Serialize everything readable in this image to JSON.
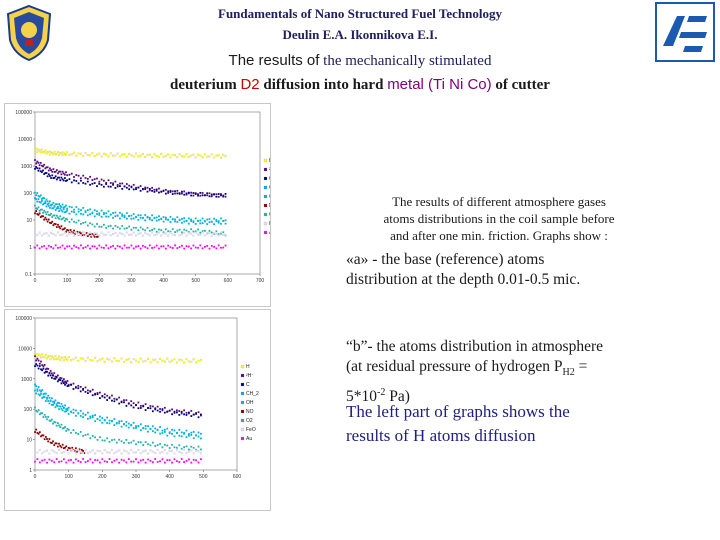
{
  "header": {
    "line1": "Fundamentals of Nano Structured Fuel Technology",
    "line2": "Deulin E.A.   Ikonnikova E.I."
  },
  "title": {
    "part1": "The results of",
    "part2": " the mechanically stimulated",
    "part3": "deuterium ",
    "part4": "D2",
    "part5": "  diffusion into hard ",
    "part6": "metal (Ti Ni Co)",
    "part7": " of cutter"
  },
  "description": {
    "intro_line1": "The results of different atmosphere gases",
    "intro_line2": "atoms distributions  in the coil sample before",
    "intro_line3": "and  after  one min. friction.     Graphs show :",
    "a_line1": "«a» - the base (reference)  atoms",
    "a_line2": "distribution at the depth 0.01-0.5 mic.",
    "b_text": "“b”- the  atoms distribution in atmosphere (at residual pressure  of hydrogen  P H2  = 5*10-2 Pa)",
    "b_line1": "“b”- the  atoms distribution in atmosphere",
    "b_line2": "(at residual pressure  of hydrogen  P",
    "b_sub": "H2",
    "b_line2_end": "  =",
    "b_line3_pre": "5*10",
    "b_sup": "-2",
    "b_line3_post": " Pa)",
    "left_note_line1": "The left part of graphs shows the",
    "left_note_line2": "results of H atoms diffusion"
  },
  "legend_items": [
    "H",
    "²H⁻",
    "C",
    "CH_2",
    "OH",
    "NO",
    "O2",
    "FeO",
    "Au"
  ],
  "colors": {
    "H": "#ffff00",
    "D": "#5a0a7a",
    "C": "#000080",
    "CH2": "#00aaff",
    "OH": "#00b8c8",
    "NO": "#8b0000",
    "O2": "#20b2aa",
    "FeO": "#e0e0ff",
    "Au": "#ff00ff"
  },
  "chart_data": [
    {
      "type": "scatter",
      "panel": "a",
      "y_scale": "log",
      "yticks": [
        "100000",
        "10000",
        "1000",
        "100",
        "10",
        "1",
        "0.1"
      ],
      "xticks": [
        "0",
        "100",
        "200",
        "300",
        "400",
        "500",
        "600",
        "700"
      ],
      "xlim": [
        0,
        700
      ],
      "ylim": [
        0.1,
        100000
      ],
      "legend": [
        "H",
        "²H⁻",
        "C",
        "CH_2",
        "OH",
        "NO",
        "O2",
        "FeO",
        "Au"
      ],
      "series": [
        {
          "name": "H",
          "x": [
            0,
            50,
            100,
            200,
            300,
            400,
            500,
            600
          ],
          "y": [
            4000,
            3000,
            2800,
            2600,
            2500,
            2400,
            2400,
            2300
          ]
        },
        {
          "name": "²H⁻",
          "x": [
            0,
            50,
            100,
            200,
            300,
            400,
            500,
            600
          ],
          "y": [
            1500,
            700,
            500,
            300,
            180,
            120,
            90,
            80
          ]
        },
        {
          "name": "C",
          "x": [
            0,
            50,
            100,
            200,
            300,
            400,
            500,
            600
          ],
          "y": [
            900,
            400,
            300,
            200,
            150,
            110,
            90,
            80
          ]
        },
        {
          "name": "CH_2",
          "x": [
            0,
            50,
            100,
            200,
            300,
            400,
            500,
            600
          ],
          "y": [
            60,
            30,
            20,
            15,
            12,
            10,
            8,
            8
          ]
        },
        {
          "name": "OH",
          "x": [
            0,
            50,
            100,
            200,
            300,
            400,
            500,
            600
          ],
          "y": [
            100,
            40,
            30,
            20,
            15,
            12,
            10,
            10
          ]
        },
        {
          "name": "NO",
          "x": [
            0,
            50,
            100,
            150,
            200
          ],
          "y": [
            20,
            8,
            4,
            3,
            2.5
          ]
        },
        {
          "name": "O2",
          "x": [
            0,
            50,
            100,
            200,
            300,
            400,
            500,
            600
          ],
          "y": [
            30,
            15,
            10,
            6,
            5,
            4,
            4,
            3
          ]
        },
        {
          "name": "FeO",
          "x": [
            0,
            100,
            200,
            300,
            400,
            500,
            600
          ],
          "y": [
            3,
            3,
            3,
            3,
            3,
            3,
            3
          ]
        },
        {
          "name": "Au",
          "x": [
            0,
            100,
            200,
            300,
            400,
            500,
            600
          ],
          "y": [
            1,
            1,
            1,
            1,
            1,
            1,
            1
          ]
        }
      ]
    },
    {
      "type": "scatter",
      "panel": "b",
      "y_scale": "log",
      "yticks": [
        "100000",
        "10000",
        "1000",
        "100",
        "10",
        "1"
      ],
      "xticks": [
        "0",
        "100",
        "200",
        "300",
        "400",
        "500",
        "600"
      ],
      "xlim": [
        0,
        600
      ],
      "ylim": [
        1,
        100000
      ],
      "legend": [
        "H",
        "²H⁻",
        "C",
        "CH_2",
        "OH",
        "NO",
        "O2",
        "FeO",
        "Au"
      ],
      "series": [
        {
          "name": "H",
          "x": [
            0,
            50,
            100,
            200,
            300,
            400,
            500
          ],
          "y": [
            6000,
            5000,
            4500,
            4200,
            4000,
            4000,
            3800
          ]
        },
        {
          "name": "²H⁻",
          "x": [
            0,
            50,
            100,
            200,
            300,
            400,
            500
          ],
          "y": [
            5000,
            1500,
            700,
            300,
            150,
            90,
            70
          ]
        },
        {
          "name": "C",
          "x": [
            0,
            50,
            100,
            200,
            300,
            400,
            500
          ],
          "y": [
            3000,
            1200,
            600,
            250,
            120,
            80,
            60
          ]
        },
        {
          "name": "CH_2",
          "x": [
            0,
            50,
            100,
            200,
            300,
            400,
            500
          ],
          "y": [
            600,
            200,
            100,
            50,
            30,
            20,
            15
          ]
        },
        {
          "name": "OH",
          "x": [
            0,
            50,
            100,
            200,
            300,
            400,
            500
          ],
          "y": [
            400,
            150,
            80,
            40,
            25,
            15,
            12
          ]
        },
        {
          "name": "NO",
          "x": [
            0,
            50,
            100,
            150
          ],
          "y": [
            20,
            8,
            5,
            4
          ]
        },
        {
          "name": "O2",
          "x": [
            0,
            50,
            100,
            200,
            300,
            400,
            500
          ],
          "y": [
            100,
            40,
            20,
            10,
            8,
            6,
            5
          ]
        },
        {
          "name": "FeO",
          "x": [
            0,
            100,
            200,
            300,
            400,
            500
          ],
          "y": [
            4,
            4,
            4,
            4,
            4,
            4
          ]
        },
        {
          "name": "Au",
          "x": [
            0,
            100,
            200,
            300,
            400,
            500
          ],
          "y": [
            2,
            2,
            2,
            2,
            2,
            2
          ]
        }
      ]
    }
  ]
}
